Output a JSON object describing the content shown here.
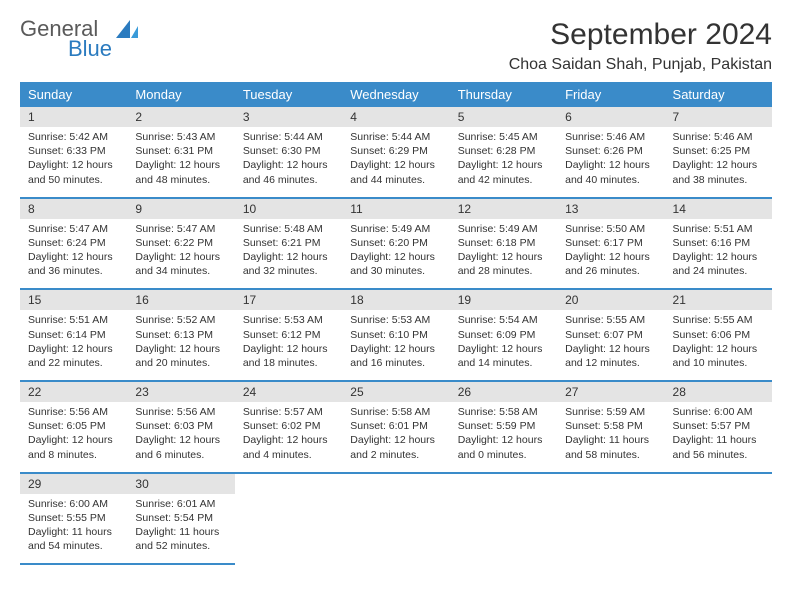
{
  "brand": {
    "name_a": "General",
    "name_b": "Blue"
  },
  "title": "September 2024",
  "location": "Choa Saidan Shah, Punjab, Pakistan",
  "colors": {
    "header_bg": "#3a8bc9",
    "daynum_bg": "#e4e4e4",
    "rule": "#3a8bc9"
  },
  "weekdays": [
    "Sunday",
    "Monday",
    "Tuesday",
    "Wednesday",
    "Thursday",
    "Friday",
    "Saturday"
  ],
  "weeks": [
    [
      {
        "n": "1",
        "sr": "5:42 AM",
        "ss": "6:33 PM",
        "dl": "12 hours and 50 minutes."
      },
      {
        "n": "2",
        "sr": "5:43 AM",
        "ss": "6:31 PM",
        "dl": "12 hours and 48 minutes."
      },
      {
        "n": "3",
        "sr": "5:44 AM",
        "ss": "6:30 PM",
        "dl": "12 hours and 46 minutes."
      },
      {
        "n": "4",
        "sr": "5:44 AM",
        "ss": "6:29 PM",
        "dl": "12 hours and 44 minutes."
      },
      {
        "n": "5",
        "sr": "5:45 AM",
        "ss": "6:28 PM",
        "dl": "12 hours and 42 minutes."
      },
      {
        "n": "6",
        "sr": "5:46 AM",
        "ss": "6:26 PM",
        "dl": "12 hours and 40 minutes."
      },
      {
        "n": "7",
        "sr": "5:46 AM",
        "ss": "6:25 PM",
        "dl": "12 hours and 38 minutes."
      }
    ],
    [
      {
        "n": "8",
        "sr": "5:47 AM",
        "ss": "6:24 PM",
        "dl": "12 hours and 36 minutes."
      },
      {
        "n": "9",
        "sr": "5:47 AM",
        "ss": "6:22 PM",
        "dl": "12 hours and 34 minutes."
      },
      {
        "n": "10",
        "sr": "5:48 AM",
        "ss": "6:21 PM",
        "dl": "12 hours and 32 minutes."
      },
      {
        "n": "11",
        "sr": "5:49 AM",
        "ss": "6:20 PM",
        "dl": "12 hours and 30 minutes."
      },
      {
        "n": "12",
        "sr": "5:49 AM",
        "ss": "6:18 PM",
        "dl": "12 hours and 28 minutes."
      },
      {
        "n": "13",
        "sr": "5:50 AM",
        "ss": "6:17 PM",
        "dl": "12 hours and 26 minutes."
      },
      {
        "n": "14",
        "sr": "5:51 AM",
        "ss": "6:16 PM",
        "dl": "12 hours and 24 minutes."
      }
    ],
    [
      {
        "n": "15",
        "sr": "5:51 AM",
        "ss": "6:14 PM",
        "dl": "12 hours and 22 minutes."
      },
      {
        "n": "16",
        "sr": "5:52 AM",
        "ss": "6:13 PM",
        "dl": "12 hours and 20 minutes."
      },
      {
        "n": "17",
        "sr": "5:53 AM",
        "ss": "6:12 PM",
        "dl": "12 hours and 18 minutes."
      },
      {
        "n": "18",
        "sr": "5:53 AM",
        "ss": "6:10 PM",
        "dl": "12 hours and 16 minutes."
      },
      {
        "n": "19",
        "sr": "5:54 AM",
        "ss": "6:09 PM",
        "dl": "12 hours and 14 minutes."
      },
      {
        "n": "20",
        "sr": "5:55 AM",
        "ss": "6:07 PM",
        "dl": "12 hours and 12 minutes."
      },
      {
        "n": "21",
        "sr": "5:55 AM",
        "ss": "6:06 PM",
        "dl": "12 hours and 10 minutes."
      }
    ],
    [
      {
        "n": "22",
        "sr": "5:56 AM",
        "ss": "6:05 PM",
        "dl": "12 hours and 8 minutes."
      },
      {
        "n": "23",
        "sr": "5:56 AM",
        "ss": "6:03 PM",
        "dl": "12 hours and 6 minutes."
      },
      {
        "n": "24",
        "sr": "5:57 AM",
        "ss": "6:02 PM",
        "dl": "12 hours and 4 minutes."
      },
      {
        "n": "25",
        "sr": "5:58 AM",
        "ss": "6:01 PM",
        "dl": "12 hours and 2 minutes."
      },
      {
        "n": "26",
        "sr": "5:58 AM",
        "ss": "5:59 PM",
        "dl": "12 hours and 0 minutes."
      },
      {
        "n": "27",
        "sr": "5:59 AM",
        "ss": "5:58 PM",
        "dl": "11 hours and 58 minutes."
      },
      {
        "n": "28",
        "sr": "6:00 AM",
        "ss": "5:57 PM",
        "dl": "11 hours and 56 minutes."
      }
    ],
    [
      {
        "n": "29",
        "sr": "6:00 AM",
        "ss": "5:55 PM",
        "dl": "11 hours and 54 minutes."
      },
      {
        "n": "30",
        "sr": "6:01 AM",
        "ss": "5:54 PM",
        "dl": "11 hours and 52 minutes."
      },
      null,
      null,
      null,
      null,
      null
    ]
  ],
  "labels": {
    "sunrise": "Sunrise:",
    "sunset": "Sunset:",
    "daylight": "Daylight:"
  }
}
